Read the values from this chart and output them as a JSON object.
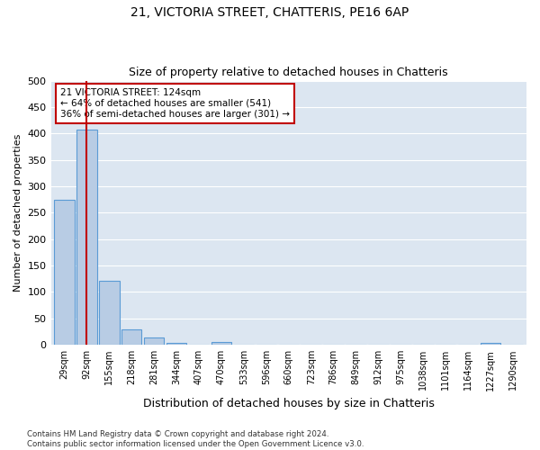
{
  "title": "21, VICTORIA STREET, CHATTERIS, PE16 6AP",
  "subtitle": "Size of property relative to detached houses in Chatteris",
  "xlabel": "Distribution of detached houses by size in Chatteris",
  "ylabel": "Number of detached properties",
  "bar_labels": [
    "29sqm",
    "92sqm",
    "155sqm",
    "218sqm",
    "281sqm",
    "344sqm",
    "407sqm",
    "470sqm",
    "533sqm",
    "596sqm",
    "660sqm",
    "723sqm",
    "786sqm",
    "849sqm",
    "912sqm",
    "975sqm",
    "1038sqm",
    "1101sqm",
    "1164sqm",
    "1227sqm",
    "1290sqm"
  ],
  "bar_values": [
    275,
    408,
    122,
    29,
    14,
    4,
    0,
    5,
    0,
    0,
    0,
    0,
    0,
    0,
    0,
    0,
    0,
    0,
    0,
    4,
    0
  ],
  "bar_color": "#b8cce4",
  "bar_edge_color": "#5b9bd5",
  "annotation_title": "21 VICTORIA STREET: 124sqm",
  "annotation_line1": "← 64% of detached houses are smaller (541)",
  "annotation_line2": "36% of semi-detached houses are larger (301) →",
  "vline_color": "#c00000",
  "vline_x": 1,
  "ylim": [
    0,
    500
  ],
  "yticks": [
    0,
    50,
    100,
    150,
    200,
    250,
    300,
    350,
    400,
    450,
    500
  ],
  "background_color": "#dce6f1",
  "footer_line1": "Contains HM Land Registry data © Crown copyright and database right 2024.",
  "footer_line2": "Contains public sector information licensed under the Open Government Licence v3.0."
}
